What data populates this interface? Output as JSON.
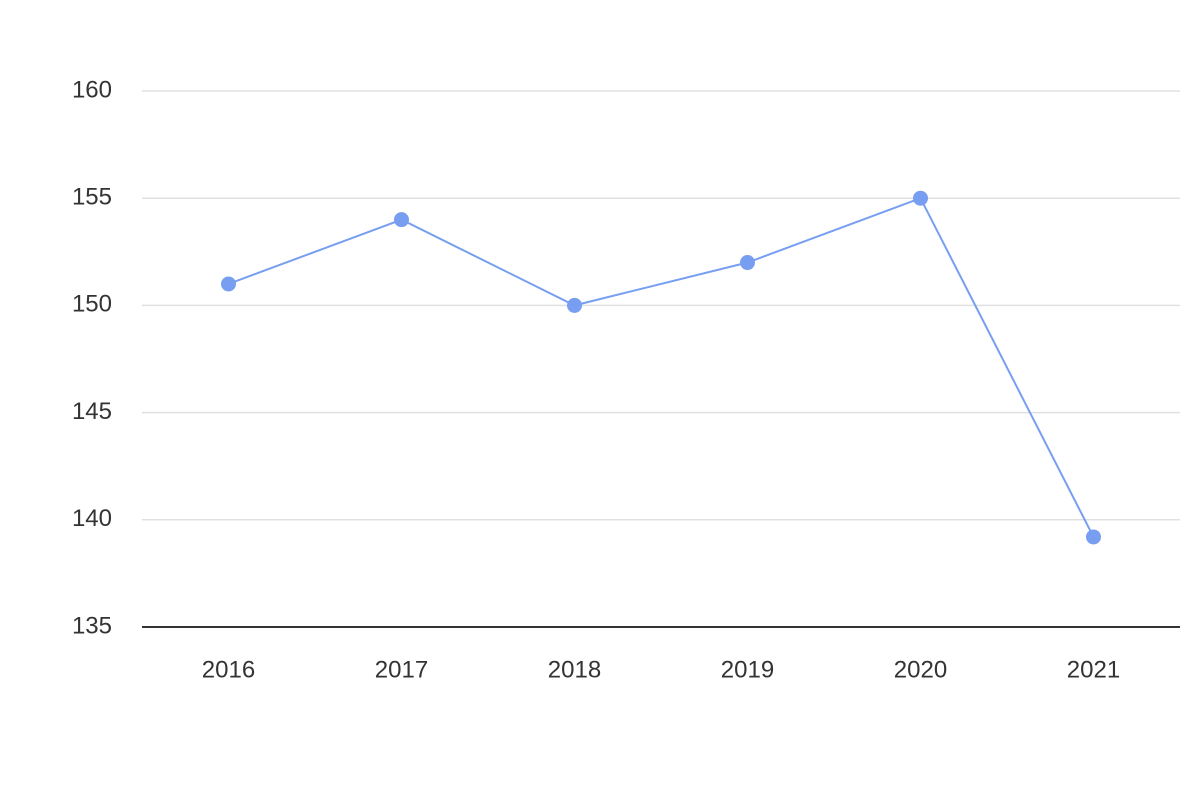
{
  "chart_data": {
    "type": "line",
    "categories": [
      "2016",
      "2017",
      "2018",
      "2019",
      "2020",
      "2021"
    ],
    "series": [
      {
        "color": "#779ef1",
        "values": [
          151,
          154,
          150,
          152,
          155,
          139.2
        ]
      }
    ],
    "ylim": [
      135,
      160
    ],
    "yticks": [
      135,
      140,
      145,
      150,
      155,
      160
    ],
    "grid": true
  }
}
